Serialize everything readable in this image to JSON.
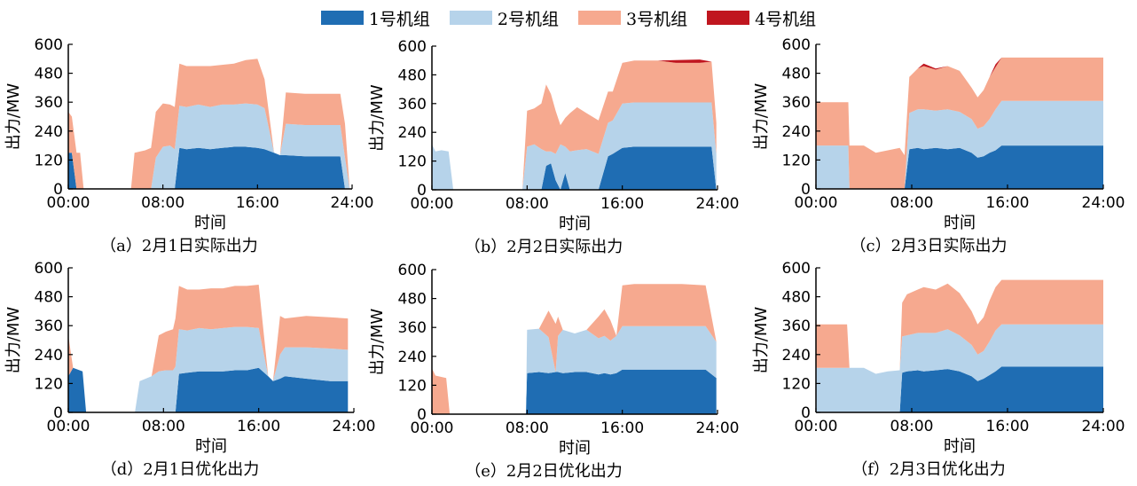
{
  "legend": {
    "items": [
      {
        "name": "1号机组",
        "color": "#1f6db3"
      },
      {
        "name": "2号机组",
        "color": "#b6d3ea"
      },
      {
        "name": "3号机组",
        "color": "#f6a98f"
      },
      {
        "name": "4号机组",
        "color": "#c0161f"
      }
    ]
  },
  "chart_data": [
    {
      "type": "area",
      "stacked": true,
      "caption": "（a）2月1日实际出力",
      "xlabel": "时间",
      "ylabel": "出力/MW",
      "xticks": [
        "00:00",
        "08:00",
        "16:00",
        "24:00"
      ],
      "yticks": [
        0,
        120,
        240,
        360,
        480,
        600
      ],
      "xlim": [
        0,
        24
      ],
      "ylim": [
        0,
        600
      ],
      "x": [
        0,
        0.3,
        0.7,
        1.0,
        1.3,
        5.3,
        5.6,
        6.5,
        7.0,
        7.4,
        8.0,
        8.6,
        9.0,
        9.4,
        10.0,
        11.0,
        12.0,
        13.0,
        14.0,
        15.0,
        16.0,
        16.6,
        17.4,
        17.9,
        18.4,
        20.0,
        22.0,
        23.0,
        23.4,
        23.8
      ],
      "series": [
        {
          "name": "1号机组",
          "values": [
            150,
            150,
            0,
            0,
            0,
            0,
            0,
            0,
            0,
            0,
            0,
            0,
            0,
            170,
            165,
            170,
            165,
            170,
            175,
            175,
            170,
            165,
            150,
            140,
            140,
            135,
            135,
            135,
            0,
            0
          ]
        },
        {
          "name": "2号机组",
          "values": [
            0,
            0,
            0,
            0,
            0,
            0,
            0,
            0,
            0,
            130,
            175,
            180,
            165,
            175,
            175,
            180,
            175,
            180,
            175,
            180,
            180,
            170,
            0,
            0,
            130,
            130,
            130,
            130,
            130,
            0
          ]
        },
        {
          "name": "3号机组",
          "values": [
            170,
            150,
            150,
            150,
            0,
            0,
            150,
            160,
            170,
            190,
            180,
            170,
            175,
            175,
            170,
            160,
            170,
            165,
            170,
            180,
            190,
            120,
            0,
            0,
            130,
            130,
            130,
            130,
            140,
            0
          ]
        },
        {
          "name": "4号机组",
          "values": [
            0,
            0,
            0,
            0,
            0,
            0,
            0,
            0,
            0,
            0,
            0,
            0,
            0,
            0,
            0,
            0,
            0,
            0,
            0,
            0,
            0,
            0,
            0,
            0,
            0,
            0,
            0,
            0,
            0,
            0
          ]
        }
      ]
    },
    {
      "type": "area",
      "stacked": true,
      "caption": "（b）2月2日实际出力",
      "xlabel": "时间",
      "ylabel": "出力/MW",
      "xticks": [
        "00:00",
        "08:00",
        "16:00",
        "24:00"
      ],
      "yticks": [
        0,
        120,
        240,
        360,
        480,
        600
      ],
      "xlim": [
        0,
        24
      ],
      "ylim": [
        0,
        600
      ],
      "x": [
        0,
        0.3,
        0.8,
        1.4,
        1.8,
        2.0,
        7.6,
        8.0,
        8.6,
        9.2,
        9.6,
        10.0,
        10.4,
        10.8,
        11.2,
        11.6,
        12.2,
        13.0,
        14.0,
        14.8,
        15.2,
        16.0,
        17.0,
        19.0,
        20.5,
        22.5,
        23.5,
        23.9
      ],
      "series": [
        {
          "name": "1号机组",
          "values": [
            0,
            0,
            0,
            0,
            0,
            0,
            0,
            0,
            0,
            0,
            100,
            110,
            40,
            0,
            70,
            0,
            0,
            0,
            0,
            140,
            150,
            175,
            180,
            180,
            180,
            180,
            180,
            0
          ]
        },
        {
          "name": "2号机组",
          "values": [
            190,
            160,
            165,
            160,
            0,
            0,
            0,
            180,
            190,
            170,
            60,
            50,
            110,
            190,
            110,
            160,
            165,
            170,
            150,
            140,
            140,
            185,
            185,
            185,
            185,
            185,
            185,
            150
          ]
        },
        {
          "name": "3号机组",
          "values": [
            0,
            0,
            0,
            0,
            0,
            0,
            0,
            150,
            150,
            190,
            280,
            240,
            180,
            80,
            120,
            160,
            180,
            150,
            140,
            130,
            120,
            170,
            175,
            175,
            165,
            165,
            170,
            130
          ]
        },
        {
          "name": "4号机组",
          "values": [
            0,
            0,
            0,
            0,
            0,
            0,
            0,
            0,
            0,
            0,
            0,
            0,
            0,
            0,
            0,
            0,
            0,
            0,
            0,
            0,
            0,
            0,
            0,
            0,
            12,
            14,
            0,
            0
          ]
        }
      ]
    },
    {
      "type": "area",
      "stacked": true,
      "caption": "（c）2月3日实际出力",
      "xlabel": "时间",
      "ylabel": "出力/MW",
      "xticks": [
        "00:00",
        "08:00",
        "16:00",
        "24:00"
      ],
      "yticks": [
        0,
        120,
        240,
        360,
        480,
        600
      ],
      "xlim": [
        0,
        24
      ],
      "ylim": [
        0,
        600
      ],
      "x": [
        0,
        2.7,
        2.8,
        4.0,
        5.0,
        6.0,
        7.0,
        7.4,
        7.8,
        8.5,
        9.0,
        10.0,
        11.0,
        12.0,
        13.0,
        13.5,
        14.0,
        14.5,
        15.0,
        15.5,
        16.0,
        18.0,
        20.0,
        24.0
      ],
      "series": [
        {
          "name": "1号机组",
          "values": [
            0,
            0,
            0,
            0,
            0,
            0,
            0,
            0,
            165,
            170,
            165,
            170,
            165,
            170,
            150,
            130,
            135,
            150,
            160,
            180,
            180,
            180,
            180,
            180
          ]
        },
        {
          "name": "2号机组",
          "values": [
            180,
            180,
            0,
            0,
            0,
            0,
            0,
            0,
            150,
            160,
            165,
            155,
            165,
            150,
            140,
            120,
            125,
            140,
            170,
            185,
            185,
            185,
            185,
            185
          ]
        },
        {
          "name": "3号机组",
          "values": [
            180,
            180,
            180,
            180,
            150,
            160,
            170,
            140,
            150,
            170,
            180,
            170,
            180,
            170,
            130,
            130,
            150,
            175,
            175,
            180,
            180,
            180,
            180,
            180
          ]
        },
        {
          "name": "4号机组",
          "values": [
            0,
            0,
            0,
            0,
            0,
            0,
            0,
            0,
            0,
            0,
            10,
            5,
            0,
            0,
            0,
            0,
            0,
            0,
            12,
            0,
            0,
            0,
            0,
            0
          ]
        }
      ]
    },
    {
      "type": "area",
      "stacked": true,
      "caption": "（d）2月1日优化出力",
      "xlabel": "时间",
      "ylabel": "出力/MW",
      "xticks": [
        "00:00",
        "08:00",
        "16:00",
        "24:00"
      ],
      "yticks": [
        0,
        120,
        240,
        360,
        480,
        600
      ],
      "xlim": [
        0,
        24
      ],
      "ylim": [
        0,
        600
      ],
      "x": [
        0,
        0.4,
        1.2,
        1.5,
        5.6,
        6.0,
        7.0,
        7.6,
        8.2,
        8.8,
        9.0,
        9.3,
        10.0,
        11.0,
        12.0,
        13.0,
        14.0,
        15.0,
        16.0,
        16.8,
        17.2,
        17.8,
        18.2,
        20.0,
        22.0,
        23.5
      ],
      "series": [
        {
          "name": "1号机组",
          "values": [
            150,
            185,
            170,
            0,
            0,
            0,
            0,
            0,
            0,
            0,
            0,
            160,
            165,
            170,
            170,
            170,
            175,
            175,
            185,
            150,
            130,
            140,
            150,
            140,
            130,
            130
          ]
        },
        {
          "name": "2号机组",
          "values": [
            0,
            0,
            0,
            0,
            0,
            130,
            150,
            170,
            175,
            175,
            190,
            185,
            175,
            180,
            175,
            180,
            180,
            180,
            165,
            0,
            0,
            100,
            120,
            130,
            135,
            130
          ]
        },
        {
          "name": "3号机组",
          "values": [
            170,
            0,
            0,
            0,
            0,
            0,
            0,
            150,
            160,
            170,
            200,
            180,
            170,
            160,
            170,
            165,
            170,
            170,
            180,
            0,
            0,
            160,
            120,
            130,
            130,
            130
          ]
        },
        {
          "name": "4号机组",
          "values": [
            0,
            0,
            0,
            0,
            0,
            0,
            0,
            0,
            0,
            0,
            0,
            0,
            0,
            0,
            0,
            0,
            0,
            0,
            0,
            0,
            0,
            0,
            0,
            0,
            0,
            0
          ]
        }
      ]
    },
    {
      "type": "area",
      "stacked": true,
      "caption": "（e）2月2日优化出力",
      "xlabel": "时间",
      "ylabel": "出力/MW",
      "xticks": [
        "00:00",
        "08:00",
        "16:00",
        "24:00"
      ],
      "yticks": [
        0,
        120,
        240,
        360,
        480,
        600
      ],
      "xlim": [
        0,
        24
      ],
      "ylim": [
        0,
        600
      ],
      "x": [
        0,
        0.3,
        1.2,
        1.5,
        7.9,
        8.0,
        9.0,
        9.8,
        10.4,
        10.6,
        11.0,
        12.0,
        13.0,
        14.0,
        14.5,
        15.0,
        15.5,
        16.0,
        17.0,
        19.0,
        21.0,
        23.0,
        23.9
      ],
      "series": [
        {
          "name": "1号机组",
          "values": [
            0,
            0,
            0,
            0,
            0,
            170,
            175,
            170,
            175,
            175,
            170,
            175,
            175,
            165,
            170,
            165,
            170,
            185,
            185,
            185,
            185,
            185,
            150
          ]
        },
        {
          "name": "2号机组",
          "values": [
            0,
            0,
            0,
            0,
            0,
            180,
            180,
            150,
            0,
            150,
            180,
            160,
            175,
            150,
            155,
            140,
            155,
            180,
            180,
            180,
            180,
            180,
            150
          ]
        },
        {
          "name": "3号机组",
          "values": [
            190,
            160,
            150,
            0,
            0,
            0,
            0,
            110,
            200,
            80,
            0,
            0,
            0,
            90,
            110,
            85,
            0,
            170,
            175,
            175,
            175,
            170,
            0
          ]
        },
        {
          "name": "4号机组",
          "values": [
            0,
            0,
            0,
            0,
            0,
            0,
            0,
            0,
            0,
            0,
            0,
            0,
            0,
            0,
            0,
            0,
            0,
            0,
            0,
            0,
            0,
            0,
            0
          ]
        }
      ]
    },
    {
      "type": "area",
      "stacked": true,
      "caption": "（f）2月3日优化出力",
      "xlabel": "时间",
      "ylabel": "出力/MW",
      "xticks": [
        "00:00",
        "08:00",
        "16:00",
        "24:00"
      ],
      "yticks": [
        0,
        120,
        240,
        360,
        480,
        600
      ],
      "xlim": [
        0,
        24
      ],
      "ylim": [
        0,
        600
      ],
      "x": [
        0,
        2.6,
        2.8,
        4.0,
        5.0,
        6.0,
        7.0,
        7.2,
        7.6,
        8.5,
        9.0,
        10.0,
        11.0,
        12.0,
        13.0,
        13.5,
        14.0,
        14.5,
        15.0,
        15.5,
        16.0,
        18.0,
        20.0,
        24.0
      ],
      "series": [
        {
          "name": "1号机组",
          "values": [
            0,
            0,
            0,
            0,
            0,
            0,
            0,
            165,
            170,
            175,
            170,
            175,
            180,
            170,
            150,
            130,
            140,
            155,
            170,
            190,
            190,
            190,
            190,
            190
          ]
        },
        {
          "name": "2号机组",
          "values": [
            185,
            185,
            185,
            185,
            160,
            170,
            175,
            150,
            150,
            155,
            160,
            155,
            165,
            150,
            130,
            110,
            115,
            140,
            170,
            175,
            175,
            175,
            175,
            175
          ]
        },
        {
          "name": "3号机组",
          "values": [
            180,
            180,
            0,
            0,
            0,
            0,
            0,
            140,
            170,
            180,
            190,
            180,
            190,
            175,
            140,
            125,
            140,
            170,
            180,
            185,
            185,
            185,
            185,
            185
          ]
        },
        {
          "name": "4号机组",
          "values": [
            0,
            0,
            0,
            0,
            0,
            0,
            0,
            0,
            0,
            0,
            0,
            0,
            0,
            0,
            0,
            0,
            0,
            0,
            0,
            0,
            0,
            0,
            0,
            0
          ]
        }
      ]
    }
  ]
}
